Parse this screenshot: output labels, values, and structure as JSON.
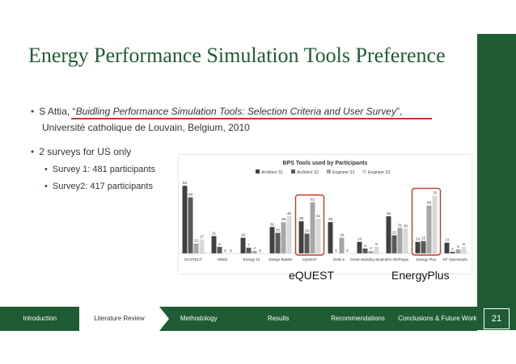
{
  "slide": {
    "title": "Energy Performance Simulation Tools Preference",
    "page_number": "21",
    "accent_color": "#1f5c34",
    "highlight_color": "#c0392b"
  },
  "bullets": {
    "citation_prefix": "S Attia, “",
    "citation_title": "Buidling Performance Simulation Tools: Selection Criteria and User Survey",
    "citation_suffix": "”,",
    "citation_line2": "Université catholique de Louvain, Belgium, 2010",
    "surveys": "2 surveys for US only",
    "survey1": "Survey 1: 481 participants",
    "survey2": "Survey2:  417 participants"
  },
  "chart_labels": {
    "equest": "eQUEST",
    "energyplus": "EnergyPlus"
  },
  "chart_data": {
    "type": "bar",
    "title": "BPS Tools used by Participants",
    "categories": [
      "ECOTECT",
      "HEED",
      "Energy 10",
      "Design Builder",
      "eQUEST",
      "DOE-2",
      "Green Building Studio",
      "IES VE/Plugin",
      "Energy Plus",
      "EF Openstudio"
    ],
    "series": [
      {
        "name": "Architect S1",
        "color": "#404040",
        "values": [
          82,
          21,
          19,
          32,
          39,
          38,
          14,
          45,
          14,
          13
        ]
      },
      {
        "name": "Architect S2",
        "color": "#595959",
        "values": [
          68,
          8,
          7,
          25,
          24,
          0,
          6,
          22,
          15,
          2
        ]
      },
      {
        "name": "Engineer S1",
        "color": "#a6a6a6",
        "values": [
          12,
          0,
          3,
          38,
          62,
          19,
          3,
          31,
          58,
          5
        ]
      },
      {
        "name": "Engineer S2",
        "color": "#d9d9d9",
        "values": [
          17,
          0,
          0,
          45,
          42,
          0,
          8,
          30,
          70,
          8
        ]
      }
    ],
    "ylim": [
      0,
      90
    ],
    "legend": "top",
    "highlighted_categories": [
      "eQUEST",
      "Energy Plus"
    ]
  },
  "nav": {
    "items": [
      {
        "label": "Introduction",
        "active": false
      },
      {
        "label": "Literature Review",
        "active": true
      },
      {
        "label": "Methodology",
        "active": false
      },
      {
        "label": "Results",
        "active": false
      },
      {
        "label": "Recommendations",
        "active": false
      },
      {
        "label": "Conclusions & Future Work",
        "active": false
      }
    ]
  }
}
